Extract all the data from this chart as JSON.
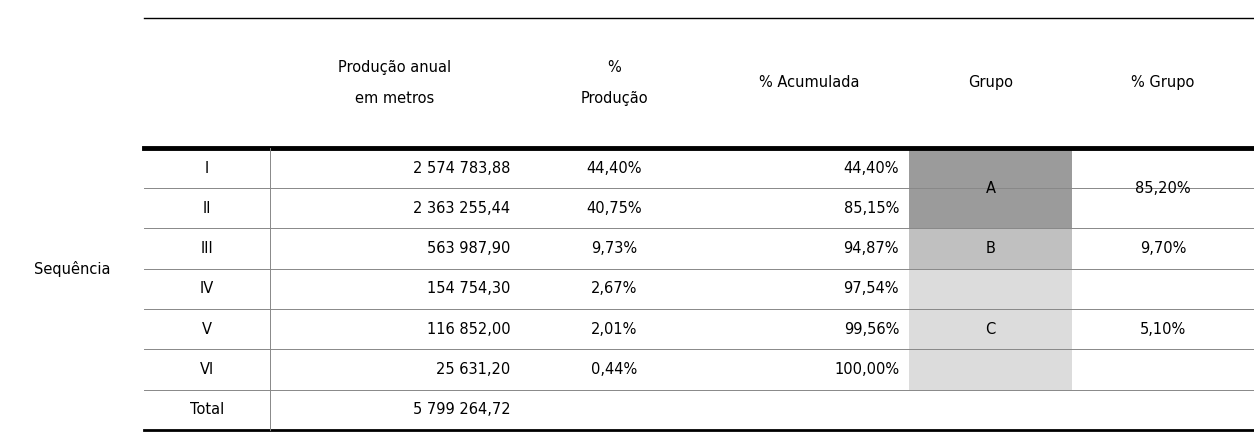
{
  "col_headers_line1": [
    "Produção anual",
    "%",
    "% Acumulada",
    "Grupo",
    "% Grupo"
  ],
  "col_headers_line2": [
    "em metros",
    "Produção",
    "",
    "",
    ""
  ],
  "row_label": "Sequência",
  "sequences": [
    "I",
    "II",
    "III",
    "IV",
    "V",
    "VI"
  ],
  "producao_anual": [
    "2 574 783,88",
    "2 363 255,44",
    "563 987,90",
    "154 754,30",
    "116 852,00",
    "25 631,20"
  ],
  "pct_producao": [
    "44,40%",
    "40,75%",
    "9,73%",
    "2,67%",
    "2,01%",
    "0,44%"
  ],
  "pct_acumulada": [
    "44,40%",
    "85,15%",
    "94,87%",
    "97,54%",
    "99,56%",
    "100,00%"
  ],
  "grupo_labels": [
    "A",
    "B",
    "C"
  ],
  "grupo_rows": [
    [
      0,
      1
    ],
    [
      2
    ],
    [
      3,
      4,
      5
    ]
  ],
  "grupo_pct": [
    "85,20%",
    "9,70%",
    "5,10%"
  ],
  "grupo_colors": [
    "#9b9b9b",
    "#c0c0c0",
    "#dcdcdc"
  ],
  "total_label": "Total",
  "total_value": "5 799 264,72",
  "bg_color": "#ffffff",
  "text_color": "#000000",
  "fontsize": 10.5
}
